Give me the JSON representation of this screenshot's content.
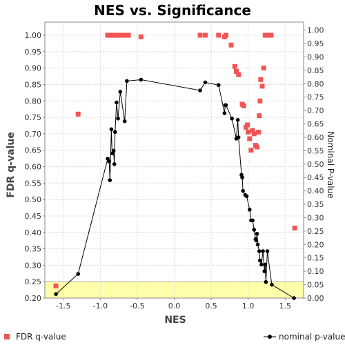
{
  "chart_data": {
    "type": "scatter",
    "title": "NES vs. Significance",
    "xlabel": "NES",
    "ylabel": "FDR q-value",
    "y2label": "Nominal P-value",
    "xlim": [
      -1.75,
      1.75
    ],
    "ylim": [
      0.2,
      1.04
    ],
    "y2lim": [
      0.0,
      1.03
    ],
    "x_ticks": [
      "-1.5",
      "-1.0",
      "-0.5",
      "0.0",
      "0.5",
      "1.0",
      "1.5"
    ],
    "x_tick_values": [
      -1.5,
      -1.0,
      -0.5,
      0.0,
      0.5,
      1.0,
      1.5
    ],
    "y_ticks": [
      "0.20",
      "0.25",
      "0.30",
      "0.35",
      "0.40",
      "0.45",
      "0.50",
      "0.55",
      "0.60",
      "0.65",
      "0.70",
      "0.75",
      "0.80",
      "0.85",
      "0.90",
      "0.95",
      "1.00"
    ],
    "y_tick_values": [
      0.2,
      0.25,
      0.3,
      0.35,
      0.4,
      0.45,
      0.5,
      0.55,
      0.6,
      0.65,
      0.7,
      0.75,
      0.8,
      0.85,
      0.9,
      0.95,
      1.0
    ],
    "y2_ticks": [
      "0.00",
      "0.05",
      "0.10",
      "0.15",
      "0.20",
      "0.25",
      "0.30",
      "0.35",
      "0.40",
      "0.45",
      "0.50",
      "0.55",
      "0.60",
      "0.65",
      "0.70",
      "0.75",
      "0.80",
      "0.85",
      "0.90",
      "0.95",
      "1.00"
    ],
    "y2_tick_values": [
      0.0,
      0.05,
      0.1,
      0.15,
      0.2,
      0.25,
      0.3,
      0.35,
      0.4,
      0.45,
      0.5,
      0.55,
      0.6,
      0.65,
      0.7,
      0.75,
      0.8,
      0.85,
      0.9,
      0.95,
      1.0
    ],
    "highlight_band": {
      "y_from": 0.2,
      "y_to": 0.25,
      "color": "#ffffaa"
    },
    "grid": true,
    "legend_position": "bottom",
    "series": [
      {
        "name": "FDR q-value",
        "axis": "left",
        "marker": "square",
        "color": "#f05555",
        "points": [
          [
            -1.6,
            0.237
          ],
          [
            -1.3,
            0.76
          ],
          [
            -0.9,
            1.0
          ],
          [
            -0.88,
            1.0
          ],
          [
            -0.86,
            1.0
          ],
          [
            -0.84,
            1.0
          ],
          [
            -0.82,
            1.0
          ],
          [
            -0.8,
            1.0
          ],
          [
            -0.78,
            1.0
          ],
          [
            -0.76,
            1.0
          ],
          [
            -0.74,
            1.0
          ],
          [
            -0.72,
            1.0
          ],
          [
            -0.66,
            1.0
          ],
          [
            -0.64,
            1.0
          ],
          [
            -0.62,
            1.0
          ],
          [
            -0.45,
            0.995
          ],
          [
            0.35,
            1.0
          ],
          [
            0.42,
            1.0
          ],
          [
            0.6,
            1.0
          ],
          [
            0.68,
            0.995
          ],
          [
            0.7,
            1.0
          ],
          [
            0.77,
            0.97
          ],
          [
            0.82,
            0.905
          ],
          [
            0.84,
            0.89
          ],
          [
            0.87,
            0.88
          ],
          [
            0.92,
            0.79
          ],
          [
            0.94,
            0.785
          ],
          [
            0.97,
            0.72
          ],
          [
            0.99,
            0.727
          ],
          [
            1.0,
            0.705
          ],
          [
            1.02,
            0.685
          ],
          [
            1.04,
            0.65
          ],
          [
            1.06,
            0.71
          ],
          [
            1.08,
            0.7
          ],
          [
            1.1,
            0.665
          ],
          [
            1.12,
            0.66
          ],
          [
            1.14,
            0.705
          ],
          [
            1.15,
            0.755
          ],
          [
            1.16,
            0.8
          ],
          [
            1.17,
            0.865
          ],
          [
            1.19,
            0.845
          ],
          [
            1.21,
            0.9
          ],
          [
            1.23,
            1.0
          ],
          [
            1.25,
            1.0
          ],
          [
            1.28,
            1.0
          ],
          [
            1.31,
            1.0
          ],
          [
            1.63,
            0.413
          ]
        ]
      },
      {
        "name": "nominal p-value",
        "axis": "right",
        "marker": "circle",
        "color": "#000000",
        "points": [
          [
            -1.6,
            0.015
          ],
          [
            -1.3,
            0.09
          ],
          [
            -0.9,
            0.52
          ],
          [
            -0.88,
            0.51
          ],
          [
            -0.87,
            0.44
          ],
          [
            -0.85,
            0.63
          ],
          [
            -0.84,
            0.54
          ],
          [
            -0.82,
            0.55
          ],
          [
            -0.81,
            0.5
          ],
          [
            -0.8,
            0.62
          ],
          [
            -0.78,
            0.73
          ],
          [
            -0.76,
            0.67
          ],
          [
            -0.73,
            0.77
          ],
          [
            -0.67,
            0.66
          ],
          [
            -0.64,
            0.81
          ],
          [
            -0.45,
            0.815
          ],
          [
            0.35,
            0.775
          ],
          [
            0.42,
            0.805
          ],
          [
            0.6,
            0.795
          ],
          [
            0.68,
            0.69
          ],
          [
            0.69,
            0.72
          ],
          [
            0.7,
            0.72
          ],
          [
            0.78,
            0.67
          ],
          [
            0.84,
            0.595
          ],
          [
            0.86,
            0.665
          ],
          [
            0.87,
            0.6
          ],
          [
            0.91,
            0.46
          ],
          [
            0.92,
            0.45
          ],
          [
            0.93,
            0.4
          ],
          [
            0.96,
            0.385
          ],
          [
            0.98,
            0.38
          ],
          [
            1.02,
            0.33
          ],
          [
            1.04,
            0.29
          ],
          [
            1.06,
            0.29
          ],
          [
            1.08,
            0.255
          ],
          [
            1.1,
            0.22
          ],
          [
            1.11,
            0.215
          ],
          [
            1.12,
            0.24
          ],
          [
            1.13,
            0.2
          ],
          [
            1.15,
            0.175
          ],
          [
            1.16,
            0.14
          ],
          [
            1.18,
            0.125
          ],
          [
            1.2,
            0.175
          ],
          [
            1.22,
            0.1
          ],
          [
            1.23,
            0.125
          ],
          [
            1.24,
            0.06
          ],
          [
            1.26,
            0.175
          ],
          [
            1.32,
            0.05
          ],
          [
            1.62,
            0.0
          ]
        ]
      }
    ]
  }
}
